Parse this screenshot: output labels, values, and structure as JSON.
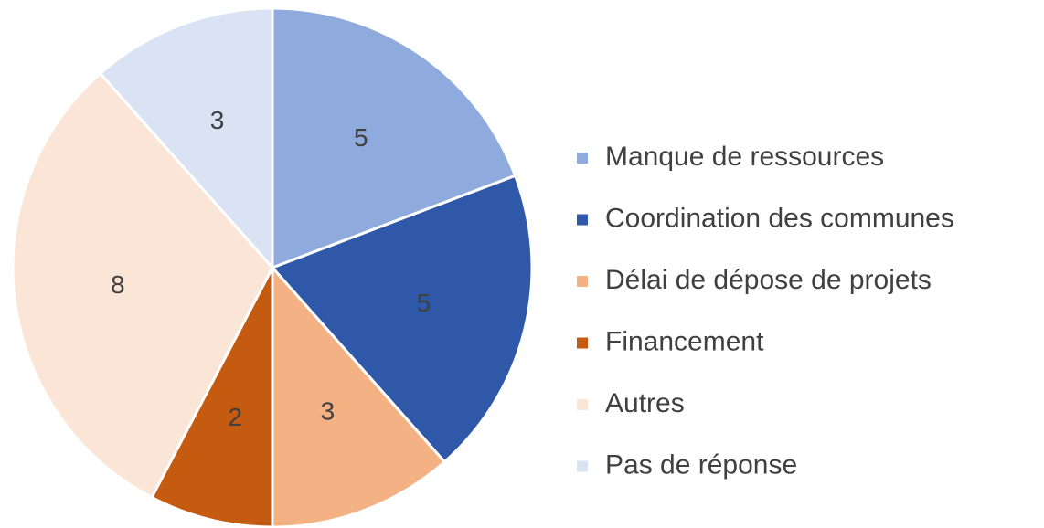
{
  "chart_data": {
    "type": "pie",
    "categories": [
      "Manque de ressources",
      "Coordination des communes",
      "Délai de dépose de projets",
      "Financement",
      "Autres",
      "Pas de réponse"
    ],
    "values": [
      5,
      5,
      3,
      2,
      8,
      3
    ],
    "colors": [
      "#8faadc",
      "#2f58a8",
      "#f4b183",
      "#c55a11",
      "#fbe5d6",
      "#dae3f3"
    ],
    "legend": "right"
  }
}
